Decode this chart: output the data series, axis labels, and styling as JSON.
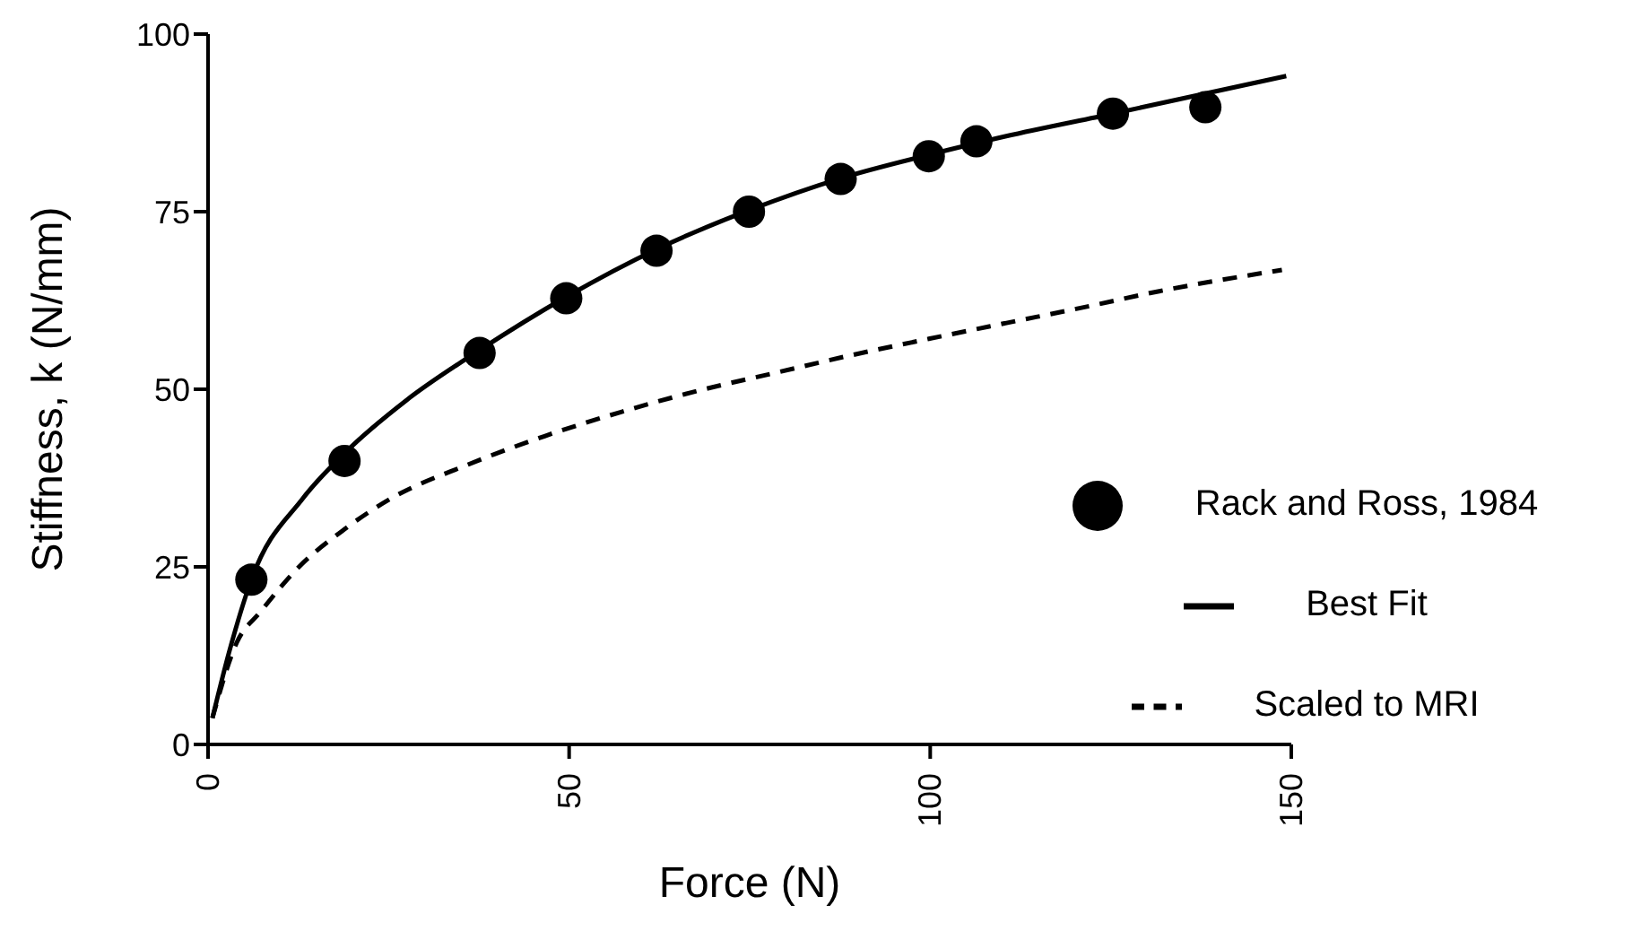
{
  "chart_data": {
    "type": "line",
    "xlabel": "Force (N)",
    "ylabel": "Stiffness, k (N/mm)",
    "xlim": [
      0,
      150
    ],
    "xticks": [
      0,
      50,
      100,
      150
    ],
    "ylim": [
      0,
      100
    ],
    "yticks": [
      0,
      25,
      50,
      75,
      100
    ],
    "grid": false,
    "legend": "right",
    "series": [
      {
        "name": "Rack and Ross, 1984",
        "type": "scatter",
        "marker": "circle",
        "color": "#000000",
        "x": [
          6.0,
          18.9,
          37.6,
          49.6,
          62.1,
          74.9,
          87.6,
          99.8,
          106.4,
          125.3,
          138.1
        ],
        "values": [
          23.2,
          39.9,
          55.1,
          62.8,
          69.5,
          75.0,
          79.6,
          82.8,
          84.9,
          88.8,
          89.7
        ]
      },
      {
        "name": "Best Fit",
        "line_style": "solid",
        "marker": "none",
        "color": "#000000",
        "x": [
          0.6,
          3,
          6,
          13.1,
          18.9,
          27.4,
          37.6,
          49.6,
          62.1,
          74.9,
          87.6,
          99.8,
          110.4,
          125.3,
          149.3
        ],
        "values": [
          3.7,
          13.3,
          23.2,
          34.6,
          41,
          48.4,
          55.5,
          63,
          69.7,
          75.2,
          79.7,
          83,
          85.6,
          88.8,
          94.1
        ]
      },
      {
        "name": "Scaled to MRI",
        "line_style": "dashed",
        "marker": "none",
        "color": "#000000",
        "x": [
          0.6,
          4,
          7.2,
          12.6,
          18.9,
          25.3,
          36,
          46.6,
          57.2,
          67.9,
          78.5,
          89.1,
          99.8,
          110.4,
          121.1,
          131.7,
          148.7
        ],
        "values": [
          3.7,
          14.4,
          18.6,
          25,
          30.3,
          34.6,
          39.4,
          43.4,
          46.8,
          49.8,
          52.3,
          54.8,
          57.1,
          59.3,
          61.5,
          63.8,
          66.8
        ]
      }
    ]
  }
}
